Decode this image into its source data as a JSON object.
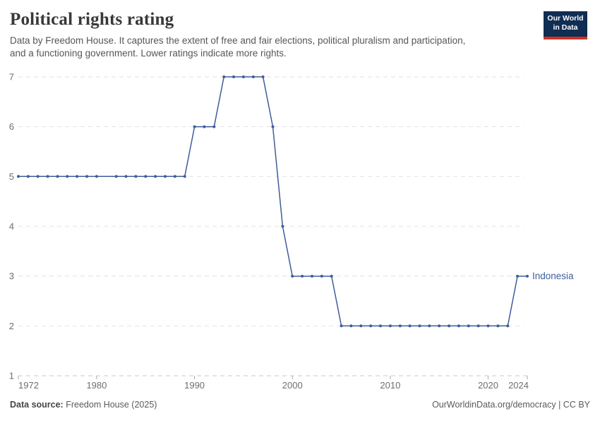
{
  "header": {
    "title": "Political rights rating",
    "subtitle_line1": "Data by Freedom House. It captures the extent of free and fair elections, political pluralism and participation,",
    "subtitle_line2": "and a functioning government. Lower ratings indicate more rights.",
    "logo": {
      "line1": "Our World",
      "line2": "in Data",
      "bg_color": "#0f2e52",
      "bar_color": "#cf3223"
    }
  },
  "footer": {
    "source_label": "Data source:",
    "source_value": " Freedom House (2025)",
    "credit": "OurWorldinData.org/democracy | CC BY"
  },
  "chart_data": {
    "type": "line",
    "title": "Political rights rating",
    "xlabel": "",
    "ylabel": "",
    "xlim": [
      1972,
      2024
    ],
    "ylim": [
      1,
      7
    ],
    "x_ticks": [
      1972,
      1980,
      1990,
      2000,
      2010,
      2020,
      2024
    ],
    "y_ticks": [
      1,
      2,
      3,
      4,
      5,
      6,
      7
    ],
    "grid": "horizontal dashed gridlines, light gray",
    "legend": "end-of-line entity label",
    "missing_years": [
      1981
    ],
    "series": [
      {
        "name": "Indonesia",
        "color": "#3f5d99",
        "years": [
          1972,
          1973,
          1974,
          1975,
          1976,
          1977,
          1978,
          1979,
          1980,
          1982,
          1983,
          1984,
          1985,
          1986,
          1987,
          1988,
          1989,
          1990,
          1991,
          1992,
          1993,
          1994,
          1995,
          1996,
          1997,
          1998,
          1999,
          2000,
          2001,
          2002,
          2003,
          2004,
          2005,
          2006,
          2007,
          2008,
          2009,
          2010,
          2011,
          2012,
          2013,
          2014,
          2015,
          2016,
          2017,
          2018,
          2019,
          2020,
          2021,
          2022,
          2023,
          2024
        ],
        "values": [
          5,
          5,
          5,
          5,
          5,
          5,
          5,
          5,
          5,
          5,
          5,
          5,
          5,
          5,
          5,
          5,
          5,
          6,
          6,
          6,
          7,
          7,
          7,
          7,
          7,
          6,
          4,
          3,
          3,
          3,
          3,
          3,
          2,
          2,
          2,
          2,
          2,
          2,
          2,
          2,
          2,
          2,
          2,
          2,
          2,
          2,
          2,
          2,
          2,
          2,
          3,
          3
        ]
      }
    ],
    "colors": {
      "line": "#3f5d99",
      "gridline": "#e2e2e2",
      "axis_line": "#c9c9c9",
      "tick": "#a8a8a8",
      "axis_text": "#6e6e6e"
    }
  }
}
